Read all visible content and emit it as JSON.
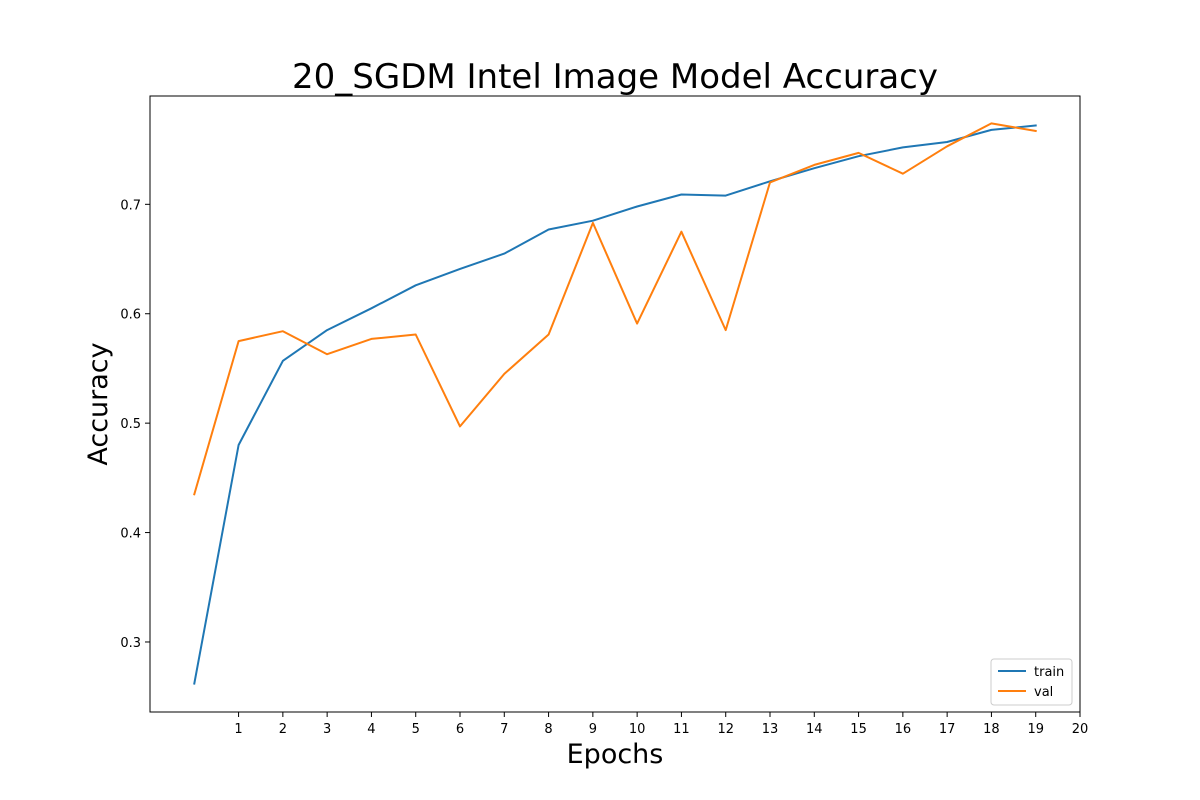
{
  "chart_data": {
    "type": "line",
    "title": "20_SGDM Intel Image Model Accuracy",
    "xlabel": "Epochs",
    "ylabel": "Accuracy",
    "x_ticks": [
      1,
      2,
      3,
      4,
      5,
      6,
      7,
      8,
      9,
      10,
      11,
      12,
      13,
      14,
      15,
      16,
      17,
      18,
      19,
      20
    ],
    "y_ticks": [
      0.3,
      0.4,
      0.5,
      0.6,
      0.7
    ],
    "xlim": [
      -1,
      20
    ],
    "ylim": [
      0.236,
      0.799
    ],
    "grid": false,
    "legend_position": "lower-right",
    "x": [
      0,
      1,
      2,
      3,
      4,
      5,
      6,
      7,
      8,
      9,
      10,
      11,
      12,
      13,
      14,
      15,
      16,
      17,
      18,
      19
    ],
    "series": [
      {
        "name": "train",
        "color": "#1f77b4",
        "values": [
          0.262,
          0.48,
          0.557,
          0.585,
          0.605,
          0.626,
          0.641,
          0.655,
          0.677,
          0.685,
          0.698,
          0.709,
          0.708,
          0.721,
          0.733,
          0.744,
          0.752,
          0.757,
          0.768,
          0.772
        ]
      },
      {
        "name": "val",
        "color": "#ff7f0e",
        "values": [
          0.435,
          0.575,
          0.584,
          0.563,
          0.577,
          0.581,
          0.497,
          0.545,
          0.581,
          0.683,
          0.591,
          0.675,
          0.585,
          0.72,
          0.736,
          0.747,
          0.728,
          0.753,
          0.774,
          0.767
        ]
      }
    ]
  }
}
